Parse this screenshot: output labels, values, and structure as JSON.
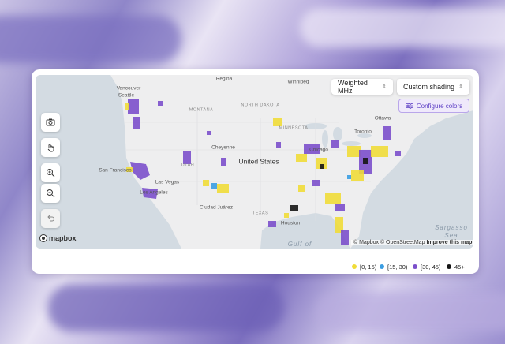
{
  "controls": {
    "metric": "Weighted MHz",
    "shading": "Custom shading",
    "configure": "Configure colors"
  },
  "map": {
    "labels": [
      "Vancouver",
      "Regina",
      "Winnipeg",
      "Seattle",
      "MONTANA",
      "NORTH DAKOTA",
      "MINNESOTA",
      "Ottawa",
      "Toronto",
      "Chicago",
      "Cheyenne",
      "UTAH",
      "United States",
      "San Francisco",
      "Las Vegas",
      "Los Angeles",
      "Ciudad Juárez",
      "TEXAS",
      "Houston",
      "Sargasso",
      "Sea",
      "Gulf of"
    ],
    "logo": "mapbox",
    "attribution": "© Mapbox © OpenStreetMap",
    "improve": "Improve this map"
  },
  "legend": {
    "items": [
      {
        "label": "[0, 15)",
        "color": "#f0dc38"
      },
      {
        "label": "[15, 30)",
        "color": "#3a9de2"
      },
      {
        "label": "[30, 45)",
        "color": "#7b4fcb"
      },
      {
        "label": "45+",
        "color": "#151515"
      }
    ]
  }
}
